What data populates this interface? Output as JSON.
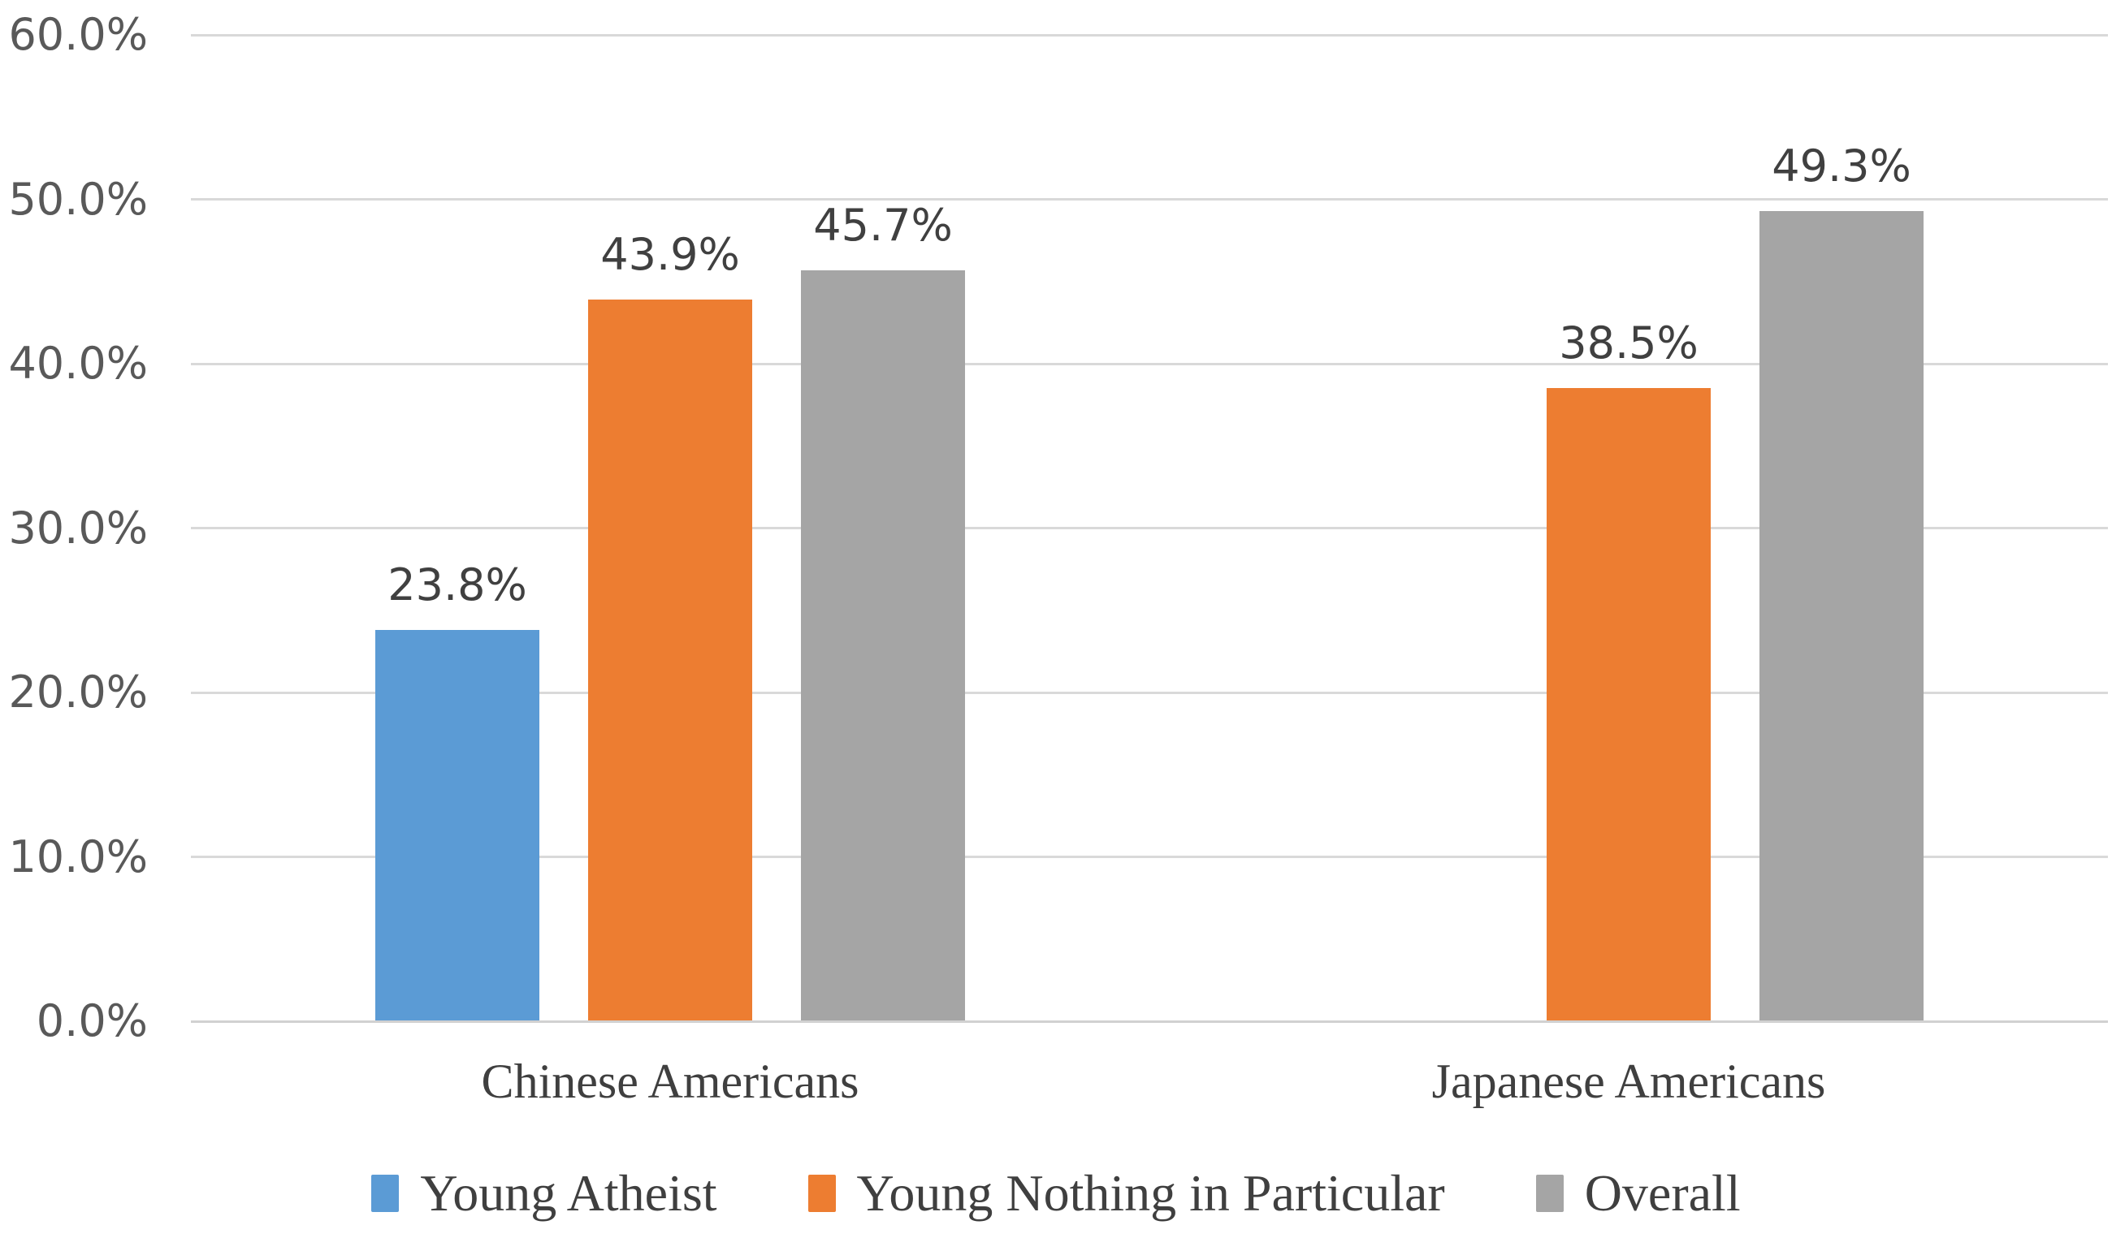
{
  "chart_data": {
    "type": "bar",
    "title": "",
    "categories": [
      "Chinese Americans",
      "Japanese Americans"
    ],
    "series": [
      {
        "name": "Young Atheist",
        "color": "#5B9BD5",
        "values": [
          23.8,
          null
        ],
        "labels": [
          "23.8%",
          null
        ]
      },
      {
        "name": "Young Nothing in Particular",
        "color": "#ED7D31",
        "values": [
          43.9,
          38.5
        ],
        "labels": [
          "43.9%",
          "38.5%"
        ]
      },
      {
        "name": "Overall",
        "color": "#A5A5A5",
        "values": [
          45.7,
          49.3
        ],
        "labels": [
          "45.7%",
          "49.3%"
        ]
      }
    ],
    "y_axis": {
      "min": 0,
      "max": 60,
      "step": 10,
      "tick_labels": [
        "0.0%",
        "10.0%",
        "20.0%",
        "30.0%",
        "40.0%",
        "50.0%",
        "60.0%"
      ]
    },
    "grid": true,
    "legend_position": "bottom",
    "xlabel": "",
    "ylabel": "",
    "style": {
      "background": "#FFFFFF",
      "gridline_color": "#D9D9D9",
      "axis_line_color": "#D1D1D1",
      "tick_label_color": "#595959",
      "data_label_color": "#404040",
      "category_label_color": "#3F3F3F",
      "legend_text_color": "#3F3F3F"
    }
  }
}
